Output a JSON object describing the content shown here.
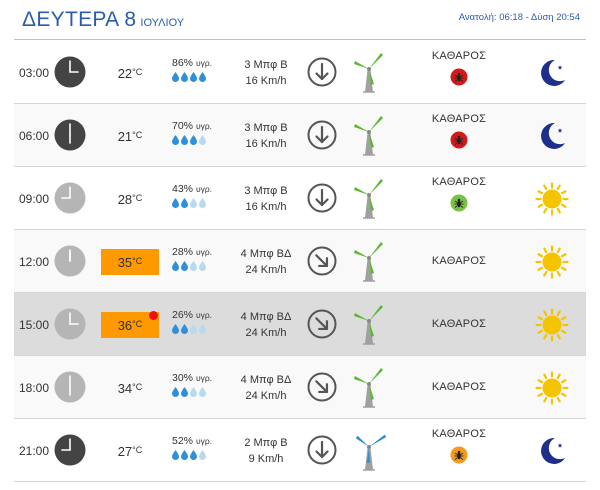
{
  "header": {
    "day": "ΔΕΥΤΕΡΑ 8",
    "month": "ΙΟΥΛΙΟΥ",
    "sun_info": "Ανατολή: 06:18 - Δύση 20:54"
  },
  "rows": [
    {
      "time": "03:00",
      "clock": "dark",
      "hour": 3,
      "temp": "22",
      "deg": "°C",
      "hot": false,
      "dot": false,
      "humidity": "86%",
      "hum_unit": "υγρ.",
      "drops_filled": 4,
      "wind_bf": "3 Μπφ Β",
      "wind_kmh": "16 Km/h",
      "wind_dir": "down",
      "turbine": "green",
      "sky": "ΚΑΘΑΡΟΣ",
      "insect": "red",
      "icon": "moon",
      "bg": "white"
    },
    {
      "time": "06:00",
      "clock": "dark",
      "hour": 6,
      "temp": "21",
      "deg": "°C",
      "hot": false,
      "dot": false,
      "humidity": "70%",
      "hum_unit": "υγρ.",
      "drops_filled": 3,
      "wind_bf": "3 Μπφ Β",
      "wind_kmh": "16 Km/h",
      "wind_dir": "down",
      "turbine": "green",
      "sky": "ΚΑΘΑΡΟΣ",
      "insect": "red",
      "icon": "moon",
      "bg": "alt"
    },
    {
      "time": "09:00",
      "clock": "light",
      "hour": 9,
      "temp": "28",
      "deg": "°C",
      "hot": false,
      "dot": false,
      "humidity": "43%",
      "hum_unit": "υγρ.",
      "drops_filled": 2,
      "wind_bf": "3 Μπφ Β",
      "wind_kmh": "16 Km/h",
      "wind_dir": "down",
      "turbine": "green",
      "sky": "ΚΑΘΑΡΟΣ",
      "insect": "green",
      "icon": "sun",
      "bg": "white"
    },
    {
      "time": "12:00",
      "clock": "light",
      "hour": 12,
      "temp": "35",
      "deg": "°C",
      "hot": true,
      "dot": false,
      "humidity": "28%",
      "hum_unit": "υγρ.",
      "drops_filled": 2,
      "wind_bf": "4 Μπφ ΒΔ",
      "wind_kmh": "24 Km/h",
      "wind_dir": "down-right",
      "turbine": "green",
      "sky": "ΚΑΘΑΡΟΣ",
      "insect": "",
      "icon": "sun",
      "bg": "alt"
    },
    {
      "time": "15:00",
      "clock": "light",
      "hour": 3,
      "temp": "36",
      "deg": "°C",
      "hot": true,
      "dot": true,
      "humidity": "26%",
      "hum_unit": "υγρ.",
      "drops_filled": 2,
      "wind_bf": "4 Μπφ ΒΔ",
      "wind_kmh": "24 Km/h",
      "wind_dir": "down-right",
      "turbine": "green",
      "sky": "ΚΑΘΑΡΟΣ",
      "insect": "",
      "icon": "sun",
      "bg": "hl"
    },
    {
      "time": "18:00",
      "clock": "light",
      "hour": 6,
      "temp": "34",
      "deg": "°C",
      "hot": false,
      "dot": false,
      "humidity": "30%",
      "hum_unit": "υγρ.",
      "drops_filled": 2,
      "wind_bf": "4 Μπφ ΒΔ",
      "wind_kmh": "24 Km/h",
      "wind_dir": "down-right",
      "turbine": "green",
      "sky": "ΚΑΘΑΡΟΣ",
      "insect": "",
      "icon": "sun",
      "bg": "alt"
    },
    {
      "time": "21:00",
      "clock": "dark",
      "hour": 9,
      "temp": "27",
      "deg": "°C",
      "hot": false,
      "dot": false,
      "humidity": "52%",
      "hum_unit": "υγρ.",
      "drops_filled": 3,
      "wind_bf": "2 Μπφ Β",
      "wind_kmh": "9 Km/h",
      "wind_dir": "down",
      "turbine": "blue",
      "sky": "ΚΑΘΑΡΟΣ",
      "insect": "orange",
      "icon": "moon",
      "bg": "white"
    }
  ],
  "colors": {
    "title": "#2a5db0",
    "hot": "#ff9900",
    "drop_filled": "#2f8fd8",
    "drop_empty": "#b9d9ef",
    "clock_dark": "#444444",
    "clock_light": "#b5b5b5",
    "moon": "#1f2f8c",
    "sun": "#f5c400",
    "turbine_green": "#5ab833",
    "turbine_blue": "#2d8fd0",
    "insect_red": "#d11b1b",
    "insect_green": "#7ac143",
    "insect_orange": "#f39a1c"
  }
}
